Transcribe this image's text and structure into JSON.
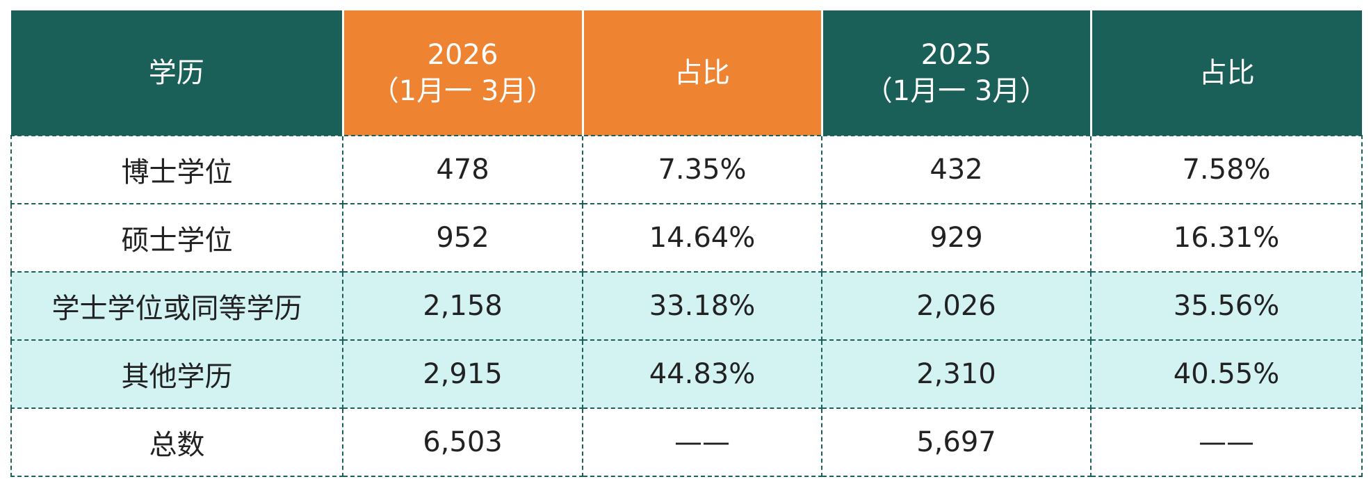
{
  "header": {
    "col1": "学历",
    "col2_year": "2026",
    "col2_range": "（1月一 3月）",
    "col3": "占比",
    "col4_year": "2025",
    "col4_range": "（1月一 3月）",
    "col5": "占比"
  },
  "rows": [
    {
      "degree": "博士学位",
      "count_2026": "478",
      "share_2026": "7.35%",
      "count_2025": "432",
      "share_2025": "7.58%"
    },
    {
      "degree": "硕士学位",
      "count_2026": "952",
      "share_2026": "14.64%",
      "count_2025": "929",
      "share_2025": "16.31%"
    },
    {
      "degree": "学士学位或同等学历",
      "count_2026": "2,158",
      "share_2026": "33.18%",
      "count_2025": "2,026",
      "share_2025": "35.56%"
    },
    {
      "degree": "其他学历",
      "count_2026": "2,915",
      "share_2026": "44.83%",
      "count_2025": "2,310",
      "share_2025": "40.55%"
    },
    {
      "degree": "总数",
      "count_2026": "6,503",
      "share_2026": "——",
      "count_2025": "5,697",
      "share_2025": "——"
    }
  ],
  "colors": {
    "header_green": "#1a6058",
    "header_orange": "#ee8431",
    "highlight_row": "#d2f3f1"
  }
}
